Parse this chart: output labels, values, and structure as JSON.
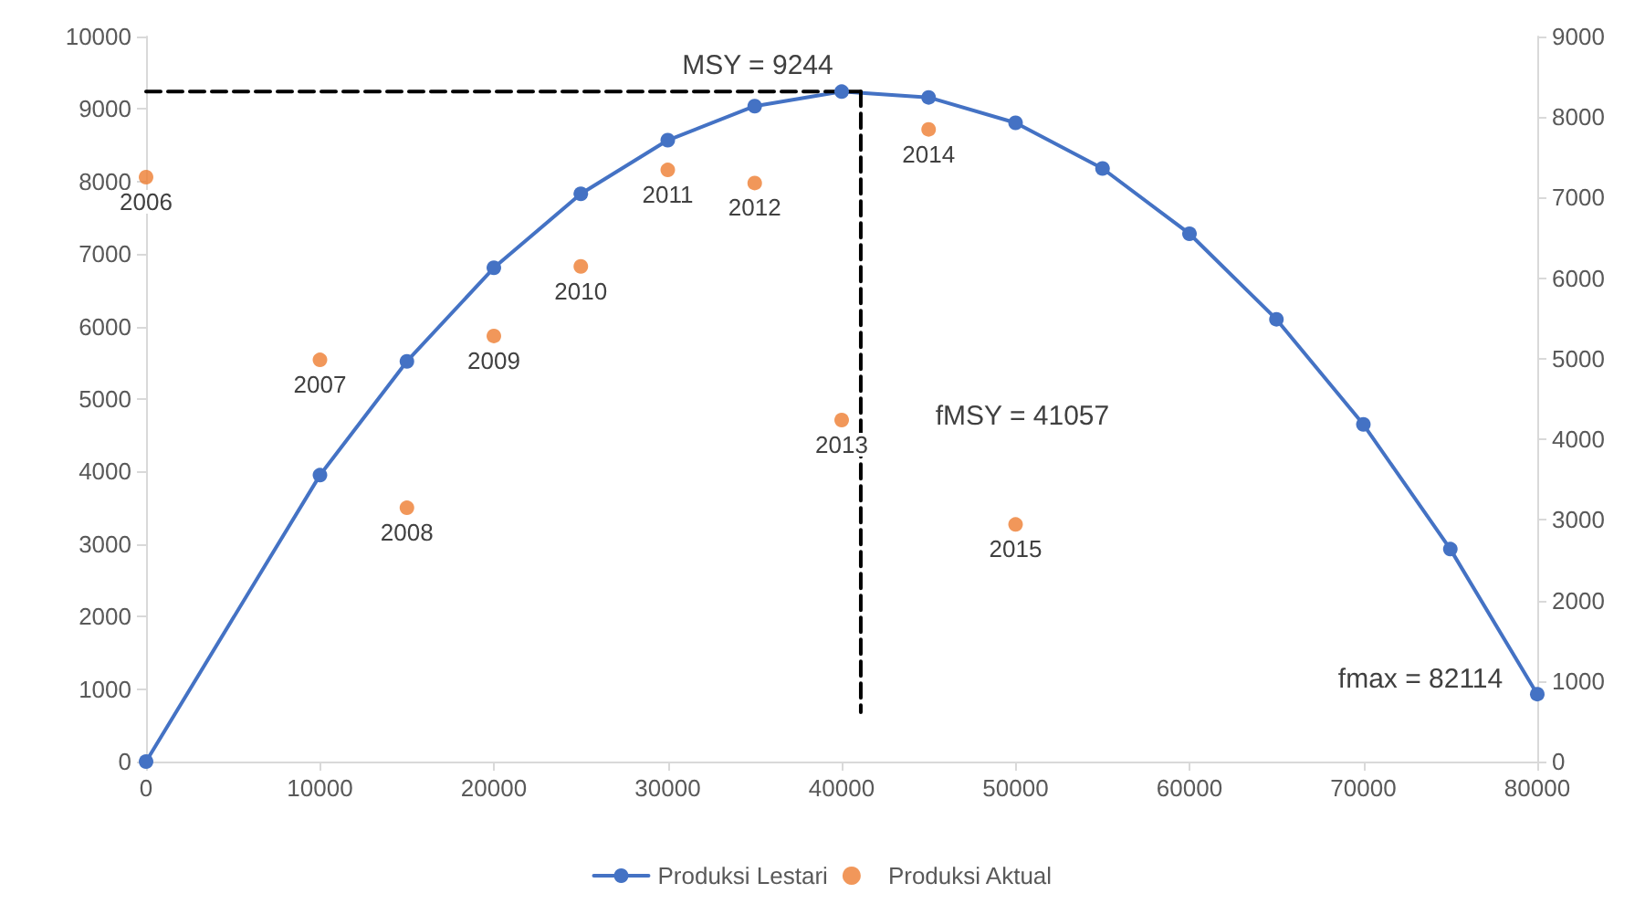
{
  "chart_data": {
    "type": "line",
    "x": [
      0,
      10000,
      15000,
      20000,
      25000,
      30000,
      35000,
      40000,
      45000,
      50000,
      55000,
      60000,
      65000,
      70000,
      75000,
      80000
    ],
    "series": [
      {
        "name": "Produksi Lestari",
        "color": "#4472c4",
        "marker": "circle",
        "values": [
          0,
          3950,
          5520,
          6810,
          7830,
          8570,
          9040,
          9240,
          9160,
          8810,
          8180,
          7280,
          6100,
          4650,
          2930,
          930
        ]
      },
      {
        "name": "Produksi Aktual",
        "type": "scatter",
        "color": "#ed7d31",
        "marker": "circle",
        "x": [
          0,
          10000,
          15000,
          20000,
          25000,
          30000,
          35000,
          40000,
          45000,
          50000
        ],
        "values": [
          8060,
          5540,
          3500,
          5870,
          6830,
          8160,
          7980,
          4710,
          8720,
          3270
        ]
      },
      {
        "type": "line",
        "color": "#000000",
        "marker": "none",
        "line_style": "dashed",
        "x": [
          0,
          41100
        ],
        "values": [
          9240,
          9240
        ]
      },
      {
        "type": "line",
        "color": "#000000",
        "marker": "none",
        "line_style": "dashed",
        "x": [
          41100,
          41100
        ],
        "values": [
          9240,
          680
        ]
      }
    ],
    "xlim": [
      0,
      80000
    ],
    "xticks": [
      0,
      10000,
      20000,
      30000,
      40000,
      50000,
      60000,
      70000,
      80000
    ],
    "ylim": [
      0,
      10000
    ],
    "yticks": [
      0,
      1000,
      2000,
      3000,
      4000,
      5000,
      6000,
      7000,
      8000,
      9000,
      10000
    ],
    "y2lim": [
      0,
      9000
    ],
    "y2ticks": [
      0,
      1000,
      2000,
      3000,
      4000,
      5000,
      6000,
      7000,
      8000,
      9000
    ],
    "annotations": [
      "MSY = 9244",
      "fMSY = 41057",
      "fmax = 82114",
      {
        "text": "2006",
        "x": 0,
        "y": 8060
      },
      {
        "text": "2007",
        "x": 10000,
        "y": 5540
      },
      {
        "text": "2008",
        "x": 15000,
        "y": 3500
      },
      {
        "text": "2009",
        "x": 20000,
        "y": 5870
      },
      {
        "text": "2010",
        "x": 25000,
        "y": 6830
      },
      {
        "text": "2011",
        "x": 30000,
        "y": 8160
      },
      {
        "text": "2012",
        "x": 35000,
        "y": 7980
      },
      {
        "text": "2013",
        "x": 40000,
        "y": 4710
      },
      {
        "text": "2014",
        "x": 45000,
        "y": 8720
      },
      {
        "text": "2015",
        "x": 50000,
        "y": 3270
      }
    ],
    "grid": false,
    "legend": "bottom"
  }
}
